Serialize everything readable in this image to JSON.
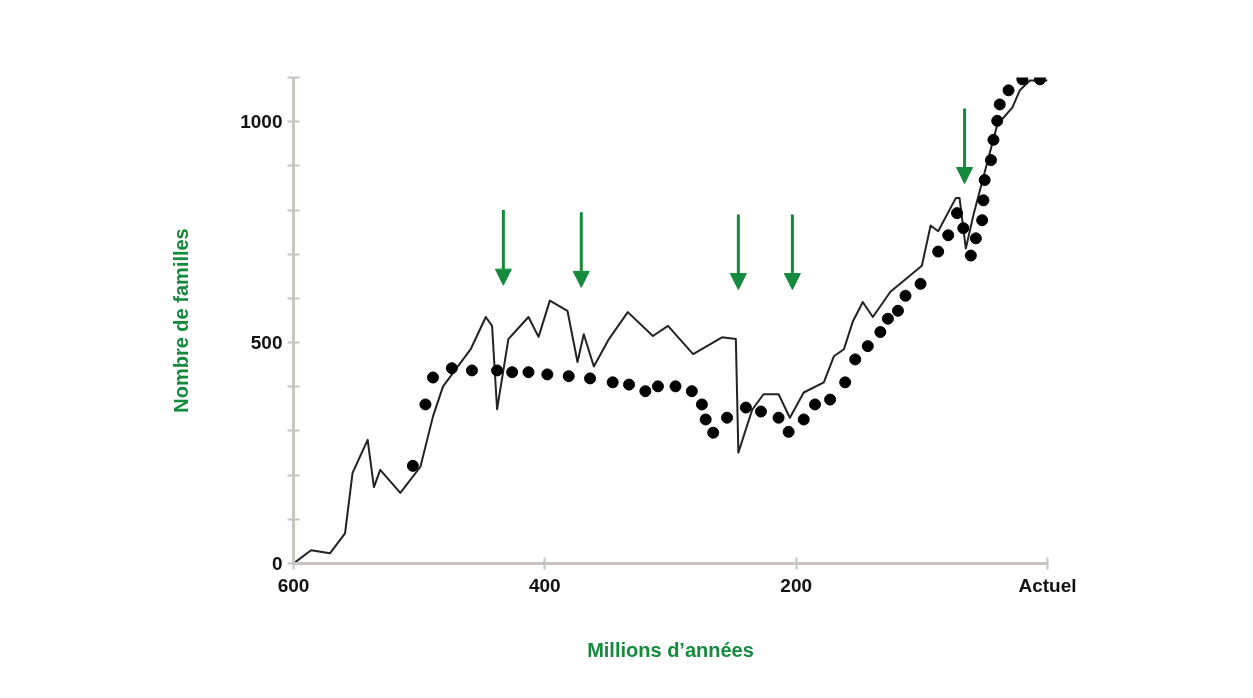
{
  "chart_data": {
    "type": "line",
    "xlabel": "Millions d’années",
    "ylabel": "Nombre de familles",
    "xlim": [
      600,
      0
    ],
    "ylim": [
      0,
      1100
    ],
    "xticks": [
      600,
      400,
      200,
      {
        "value": 0,
        "label": "Actuel"
      }
    ],
    "yticks": [
      0,
      {
        "value": 100,
        "label": null
      },
      {
        "value": 200,
        "label": null
      },
      {
        "value": 300,
        "label": null
      },
      {
        "value": 400,
        "label": null
      },
      500,
      {
        "value": 600,
        "label": null
      },
      {
        "value": 700,
        "label": null
      },
      {
        "value": 800,
        "label": null
      },
      {
        "value": 900,
        "label": null
      },
      1000,
      {
        "value": 1100,
        "label": null
      }
    ],
    "grid": false,
    "legend": false,
    "series": [
      {
        "color": "#222222",
        "line_style": "solid",
        "marker": "none",
        "x": [
          600,
          586,
          571,
          559,
          553,
          541,
          536,
          531,
          515,
          499,
          489,
          481,
          459,
          447,
          442,
          438,
          429,
          413,
          405,
          396,
          382,
          374,
          369,
          361,
          349,
          334,
          314,
          302,
          282,
          259,
          248,
          246,
          235,
          226,
          214,
          205,
          194,
          178,
          170,
          162,
          155,
          147,
          139,
          125,
          100,
          93,
          87,
          73,
          70,
          65,
          59,
          47,
          40,
          28,
          22,
          14,
          0
        ],
        "values": [
          0,
          30,
          23,
          68,
          205,
          280,
          173,
          212,
          160,
          219,
          333,
          401,
          485,
          558,
          538,
          349,
          508,
          558,
          513,
          595,
          572,
          456,
          519,
          446,
          508,
          569,
          515,
          538,
          474,
          512,
          508,
          251,
          348,
          383,
          383,
          330,
          387,
          410,
          469,
          485,
          547,
          592,
          558,
          615,
          674,
          765,
          752,
          827,
          827,
          713,
          788,
          918,
          993,
          1032,
          1071,
          1093,
          1093
        ]
      },
      {
        "type": "scatter",
        "color": "#000000",
        "marker": "circle",
        "x": [
          505,
          495,
          489,
          474,
          458,
          438,
          426,
          413,
          398,
          381,
          364,
          346,
          333,
          320,
          310,
          296,
          283,
          275,
          272,
          266,
          255,
          240,
          228,
          214,
          206,
          194,
          185,
          173,
          161,
          153,
          143,
          133,
          127,
          119,
          113,
          101,
          87,
          79,
          72,
          67,
          61,
          57,
          52,
          51,
          50,
          45,
          43,
          40,
          38,
          31,
          20,
          6
        ],
        "values": [
          221,
          360,
          421,
          442,
          437,
          437,
          433,
          433,
          428,
          424,
          419,
          410,
          405,
          390,
          401,
          401,
          390,
          360,
          326,
          296,
          330,
          353,
          344,
          330,
          298,
          326,
          360,
          371,
          410,
          462,
          492,
          524,
          554,
          572,
          606,
          633,
          706,
          743,
          793,
          759,
          697,
          736,
          777,
          822,
          868,
          913,
          959,
          1002,
          1039,
          1071,
          1096,
          1096
        ]
      }
    ]
  }
}
